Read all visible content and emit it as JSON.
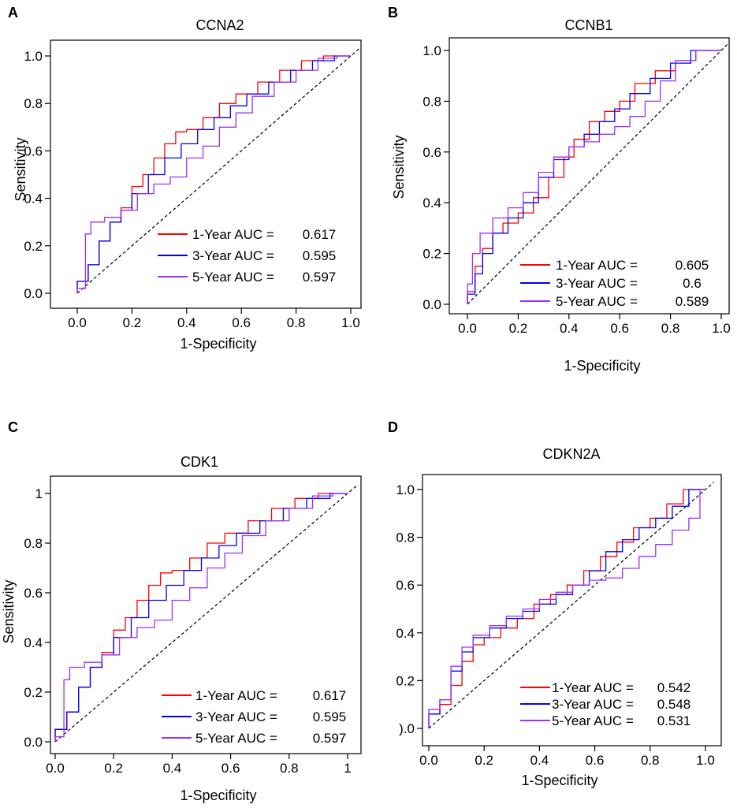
{
  "legend_colors": {
    "1-Year": "#ff0000",
    "3-Year": "#0000ff",
    "5-Year": "#9b30ff"
  },
  "chart_data": [
    {
      "panel": "A",
      "type": "line",
      "title": "CCNA2",
      "xlabel": "1-Specificity",
      "ylabel": "Sensitivity",
      "xlim": [
        0,
        1
      ],
      "ylim": [
        0,
        1
      ],
      "xticks": [
        "0.0",
        "0.2",
        "0.4",
        "0.6",
        "0.8",
        "1.0"
      ],
      "yticks": [
        "0.0",
        "0.2",
        "0.4",
        "0.6",
        "0.8",
        "1.0"
      ],
      "legend_position": "bottom-right",
      "series": [
        {
          "name": "1-Year AUC =",
          "auc": "0.617",
          "color": "#ff0000",
          "points": [
            [
              0,
              0
            ],
            [
              0.04,
              0.05
            ],
            [
              0.08,
              0.12
            ],
            [
              0.12,
              0.22
            ],
            [
              0.16,
              0.3
            ],
            [
              0.2,
              0.36
            ],
            [
              0.24,
              0.45
            ],
            [
              0.28,
              0.5
            ],
            [
              0.32,
              0.57
            ],
            [
              0.36,
              0.63
            ],
            [
              0.4,
              0.68
            ],
            [
              0.46,
              0.69
            ],
            [
              0.52,
              0.74
            ],
            [
              0.58,
              0.8
            ],
            [
              0.66,
              0.84
            ],
            [
              0.74,
              0.89
            ],
            [
              0.82,
              0.94
            ],
            [
              0.9,
              0.98
            ],
            [
              1,
              1
            ]
          ]
        },
        {
          "name": "3-Year AUC =",
          "auc": "0.595",
          "color": "#0000ff",
          "points": [
            [
              0,
              0
            ],
            [
              0.04,
              0.05
            ],
            [
              0.08,
              0.12
            ],
            [
              0.12,
              0.22
            ],
            [
              0.16,
              0.3
            ],
            [
              0.2,
              0.35
            ],
            [
              0.26,
              0.42
            ],
            [
              0.32,
              0.5
            ],
            [
              0.38,
              0.57
            ],
            [
              0.44,
              0.63
            ],
            [
              0.5,
              0.69
            ],
            [
              0.56,
              0.74
            ],
            [
              0.62,
              0.79
            ],
            [
              0.7,
              0.84
            ],
            [
              0.78,
              0.89
            ],
            [
              0.86,
              0.94
            ],
            [
              0.94,
              0.98
            ],
            [
              1,
              1
            ]
          ]
        },
        {
          "name": "5-Year AUC =",
          "auc": "0.597",
          "color": "#9b30ff",
          "points": [
            [
              0,
              0
            ],
            [
              0.03,
              0.02
            ],
            [
              0.05,
              0.25
            ],
            [
              0.1,
              0.3
            ],
            [
              0.16,
              0.32
            ],
            [
              0.22,
              0.35
            ],
            [
              0.28,
              0.42
            ],
            [
              0.34,
              0.46
            ],
            [
              0.4,
              0.49
            ],
            [
              0.46,
              0.57
            ],
            [
              0.52,
              0.62
            ],
            [
              0.58,
              0.7
            ],
            [
              0.64,
              0.76
            ],
            [
              0.72,
              0.83
            ],
            [
              0.8,
              0.89
            ],
            [
              0.88,
              0.94
            ],
            [
              0.95,
              0.99
            ],
            [
              1,
              1
            ]
          ]
        }
      ]
    },
    {
      "panel": "B",
      "type": "line",
      "title": "CCNB1",
      "xlabel": "1-Specificity",
      "ylabel": "Sensitivity",
      "xlim": [
        0,
        1
      ],
      "ylim": [
        0,
        1
      ],
      "xticks": [
        "0.0",
        "0.2",
        "0.4",
        "0.6",
        "0.8",
        "1.0"
      ],
      "yticks": [
        "0.0",
        "0.2",
        "0.4",
        "0.6",
        "0.8",
        "1.0"
      ],
      "legend_position": "bottom-right",
      "series": [
        {
          "name": "1-Year AUC =",
          "auc": "0.605",
          "color": "#ff0000",
          "points": [
            [
              0,
              0
            ],
            [
              0.03,
              0.05
            ],
            [
              0.06,
              0.15
            ],
            [
              0.1,
              0.22
            ],
            [
              0.14,
              0.28
            ],
            [
              0.2,
              0.32
            ],
            [
              0.26,
              0.36
            ],
            [
              0.32,
              0.42
            ],
            [
              0.38,
              0.5
            ],
            [
              0.42,
              0.58
            ],
            [
              0.48,
              0.65
            ],
            [
              0.54,
              0.72
            ],
            [
              0.6,
              0.76
            ],
            [
              0.66,
              0.8
            ],
            [
              0.74,
              0.87
            ],
            [
              0.82,
              0.92
            ],
            [
              0.9,
              0.96
            ],
            [
              1,
              1
            ]
          ]
        },
        {
          "name": "3-Year AUC =",
          "auc": "0.6",
          "color": "#0000ff",
          "points": [
            [
              0,
              0
            ],
            [
              0.03,
              0.04
            ],
            [
              0.06,
              0.12
            ],
            [
              0.1,
              0.2
            ],
            [
              0.16,
              0.28
            ],
            [
              0.22,
              0.34
            ],
            [
              0.28,
              0.4
            ],
            [
              0.34,
              0.5
            ],
            [
              0.4,
              0.57
            ],
            [
              0.46,
              0.62
            ],
            [
              0.52,
              0.67
            ],
            [
              0.58,
              0.72
            ],
            [
              0.64,
              0.77
            ],
            [
              0.72,
              0.83
            ],
            [
              0.8,
              0.89
            ],
            [
              0.88,
              0.95
            ],
            [
              1,
              1
            ]
          ]
        },
        {
          "name": "5-Year AUC =",
          "auc": "0.589",
          "color": "#9b30ff",
          "points": [
            [
              0,
              0
            ],
            [
              0.02,
              0.08
            ],
            [
              0.05,
              0.2
            ],
            [
              0.1,
              0.28
            ],
            [
              0.16,
              0.34
            ],
            [
              0.22,
              0.38
            ],
            [
              0.28,
              0.44
            ],
            [
              0.34,
              0.52
            ],
            [
              0.4,
              0.58
            ],
            [
              0.46,
              0.62
            ],
            [
              0.52,
              0.64
            ],
            [
              0.58,
              0.67
            ],
            [
              0.64,
              0.7
            ],
            [
              0.7,
              0.74
            ],
            [
              0.76,
              0.8
            ],
            [
              0.82,
              0.88
            ],
            [
              0.9,
              0.96
            ],
            [
              1,
              1
            ]
          ]
        }
      ]
    },
    {
      "panel": "C",
      "type": "line",
      "title": "CDK1",
      "xlabel": "1-Specificity",
      "ylabel": "Sensitivity",
      "xlim": [
        0,
        1
      ],
      "ylim": [
        0,
        1
      ],
      "xticks": [
        "0.0",
        "0.2",
        "0.4",
        "0.6",
        "0.8",
        "1"
      ],
      "yticks": [
        "0.0",
        "0.2",
        "0.4",
        "0.6",
        "0.8",
        "1"
      ],
      "legend_position": "bottom-right",
      "series": [
        {
          "name": "1-Year AUC =",
          "auc": "0.617",
          "color": "#ff0000",
          "points": [
            [
              0,
              0
            ],
            [
              0.04,
              0.05
            ],
            [
              0.08,
              0.12
            ],
            [
              0.12,
              0.22
            ],
            [
              0.16,
              0.3
            ],
            [
              0.2,
              0.36
            ],
            [
              0.24,
              0.45
            ],
            [
              0.28,
              0.5
            ],
            [
              0.32,
              0.57
            ],
            [
              0.36,
              0.63
            ],
            [
              0.4,
              0.68
            ],
            [
              0.46,
              0.69
            ],
            [
              0.52,
              0.74
            ],
            [
              0.58,
              0.8
            ],
            [
              0.66,
              0.84
            ],
            [
              0.74,
              0.89
            ],
            [
              0.82,
              0.94
            ],
            [
              0.9,
              0.98
            ],
            [
              1,
              1
            ]
          ]
        },
        {
          "name": "3-Year AUC =",
          "auc": "0.595",
          "color": "#0000ff",
          "points": [
            [
              0,
              0
            ],
            [
              0.04,
              0.05
            ],
            [
              0.08,
              0.12
            ],
            [
              0.12,
              0.22
            ],
            [
              0.16,
              0.3
            ],
            [
              0.2,
              0.35
            ],
            [
              0.26,
              0.42
            ],
            [
              0.32,
              0.5
            ],
            [
              0.38,
              0.57
            ],
            [
              0.44,
              0.63
            ],
            [
              0.5,
              0.69
            ],
            [
              0.56,
              0.74
            ],
            [
              0.62,
              0.79
            ],
            [
              0.7,
              0.84
            ],
            [
              0.78,
              0.89
            ],
            [
              0.86,
              0.94
            ],
            [
              0.94,
              0.98
            ],
            [
              1,
              1
            ]
          ]
        },
        {
          "name": "5-Year AUC =",
          "auc": "0.597",
          "color": "#9b30ff",
          "points": [
            [
              0,
              0
            ],
            [
              0.03,
              0.02
            ],
            [
              0.05,
              0.25
            ],
            [
              0.1,
              0.3
            ],
            [
              0.16,
              0.32
            ],
            [
              0.22,
              0.35
            ],
            [
              0.28,
              0.42
            ],
            [
              0.34,
              0.46
            ],
            [
              0.4,
              0.49
            ],
            [
              0.46,
              0.57
            ],
            [
              0.52,
              0.62
            ],
            [
              0.58,
              0.7
            ],
            [
              0.64,
              0.76
            ],
            [
              0.72,
              0.83
            ],
            [
              0.8,
              0.89
            ],
            [
              0.88,
              0.94
            ],
            [
              0.95,
              0.99
            ],
            [
              1,
              1
            ]
          ]
        }
      ]
    },
    {
      "panel": "D",
      "type": "line",
      "title": "CDKN2A",
      "xlabel": "1-Specificity",
      "ylabel": "",
      "xlim": [
        0,
        1
      ],
      "ylim": [
        0,
        1
      ],
      "xticks": [
        "0.0",
        "0.2",
        "0.4",
        "0.6",
        "0.8",
        "1.0"
      ],
      "yticks": [
        ").0",
        "0.2",
        "0.4",
        "0.6",
        "0.8",
        "1.0"
      ],
      "legend_position": "bottom-right",
      "series": [
        {
          "name": "1-Year AUC =",
          "auc": "0.542",
          "color": "#ff0000",
          "points": [
            [
              0,
              0
            ],
            [
              0.04,
              0.06
            ],
            [
              0.08,
              0.1
            ],
            [
              0.12,
              0.18
            ],
            [
              0.16,
              0.28
            ],
            [
              0.2,
              0.35
            ],
            [
              0.26,
              0.38
            ],
            [
              0.32,
              0.42
            ],
            [
              0.38,
              0.46
            ],
            [
              0.44,
              0.52
            ],
            [
              0.5,
              0.56
            ],
            [
              0.56,
              0.6
            ],
            [
              0.62,
              0.66
            ],
            [
              0.68,
              0.72
            ],
            [
              0.74,
              0.78
            ],
            [
              0.8,
              0.84
            ],
            [
              0.86,
              0.88
            ],
            [
              0.92,
              0.94
            ],
            [
              1,
              1
            ]
          ]
        },
        {
          "name": "3-Year AUC =",
          "auc": "0.548",
          "color": "#0000ff",
          "points": [
            [
              0,
              0
            ],
            [
              0.04,
              0.06
            ],
            [
              0.08,
              0.12
            ],
            [
              0.12,
              0.24
            ],
            [
              0.16,
              0.32
            ],
            [
              0.22,
              0.38
            ],
            [
              0.28,
              0.42
            ],
            [
              0.34,
              0.46
            ],
            [
              0.4,
              0.49
            ],
            [
              0.46,
              0.52
            ],
            [
              0.52,
              0.56
            ],
            [
              0.58,
              0.6
            ],
            [
              0.64,
              0.66
            ],
            [
              0.7,
              0.74
            ],
            [
              0.76,
              0.79
            ],
            [
              0.82,
              0.84
            ],
            [
              0.88,
              0.88
            ],
            [
              0.94,
              0.93
            ],
            [
              1,
              1
            ]
          ]
        },
        {
          "name": "5-Year AUC =",
          "auc": "0.531",
          "color": "#9b30ff",
          "points": [
            [
              0,
              0
            ],
            [
              0.04,
              0.08
            ],
            [
              0.08,
              0.12
            ],
            [
              0.12,
              0.26
            ],
            [
              0.16,
              0.34
            ],
            [
              0.22,
              0.39
            ],
            [
              0.28,
              0.43
            ],
            [
              0.34,
              0.47
            ],
            [
              0.4,
              0.5
            ],
            [
              0.46,
              0.54
            ],
            [
              0.52,
              0.57
            ],
            [
              0.58,
              0.6
            ],
            [
              0.64,
              0.62
            ],
            [
              0.7,
              0.63
            ],
            [
              0.76,
              0.67
            ],
            [
              0.82,
              0.72
            ],
            [
              0.88,
              0.77
            ],
            [
              0.94,
              0.83
            ],
            [
              0.98,
              0.88
            ],
            [
              1,
              1
            ]
          ]
        }
      ]
    }
  ]
}
